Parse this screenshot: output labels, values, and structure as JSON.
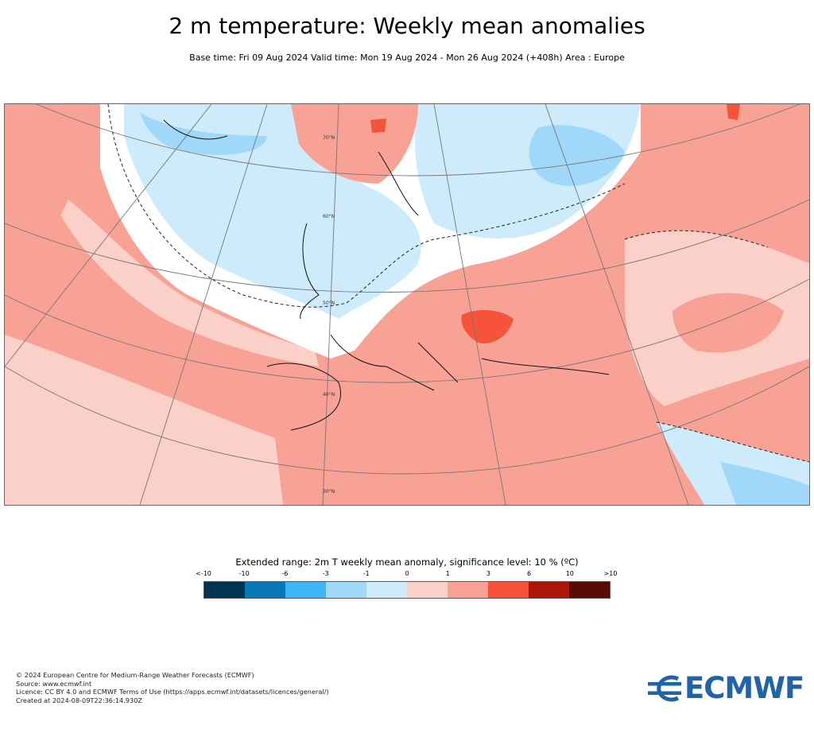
{
  "header": {
    "title": "2 m temperature: Weekly mean anomalies",
    "subtitle": "Base time: Fri 09 Aug 2024 Valid time: Mon 19 Aug 2024 - Mon 26 Aug 2024 (+408h) Area : Europe"
  },
  "map": {
    "region": "Europe",
    "latitude_labels": [
      "70°N",
      "60°N",
      "50°N",
      "40°N",
      "30°N"
    ]
  },
  "legend": {
    "title": "Extended range: 2m T weekly mean anomaly, significance level: 10 % (ºC)",
    "labels": [
      "<-10",
      "-10",
      "-6",
      "-3",
      "-1",
      "0",
      "1",
      "3",
      "6",
      "10",
      ">10"
    ],
    "colors": [
      "#003552",
      "#0a78b8",
      "#3cb6f5",
      "#9fd8f8",
      "#cdebfb",
      "#fbd0c9",
      "#f8a296",
      "#f5533a",
      "#aa1607",
      "#5a0b06"
    ]
  },
  "footer": {
    "lines": [
      "© 2024 European Centre for Medium-Range Weather Forecasts (ECMWF)",
      "Source: www.ecmwf.int",
      "Licence: CC BY 4.0 and ECMWF Terms of Use (https://apps.ecmwf.int/datasets/licences/general/)",
      "Created at 2024-08-09T22:36:14.930Z"
    ]
  },
  "logo": {
    "text": "ECMWF",
    "color": "#1f63a8"
  }
}
